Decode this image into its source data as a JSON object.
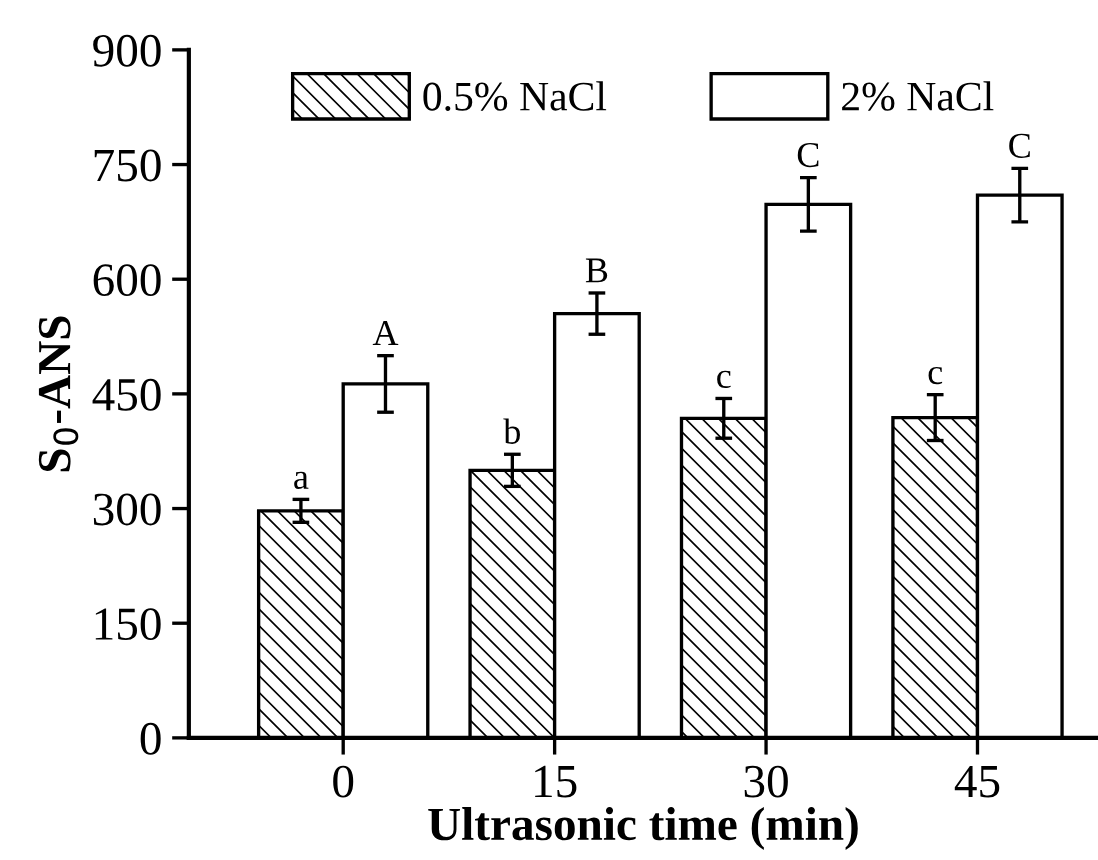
{
  "chart_data": {
    "type": "bar",
    "xlabel": "Ultrasonic time (min)",
    "ylabel": "S$_{0}$-ANS",
    "categories": [
      "0",
      "15",
      "30",
      "45"
    ],
    "series": [
      {
        "name": "0.5% NaCl",
        "color": "#000000",
        "values": [
          297,
          350,
          418,
          419
        ],
        "errors": [
          15,
          21,
          26,
          30
        ]
      },
      {
        "name": "2% NaCl",
        "color": "#ffffff",
        "values": [
          463,
          555,
          698,
          710
        ],
        "errors": [
          37,
          27,
          35,
          35
        ]
      }
    ],
    "ylim": [
      0,
      900
    ],
    "yticks": [
      0,
      150,
      300,
      450,
      600,
      750,
      900
    ],
    "grid": false,
    "legend": "top",
    "annotations": [
      "a",
      "b",
      "c",
      "c",
      "A",
      "B",
      "C",
      "C"
    ]
  }
}
